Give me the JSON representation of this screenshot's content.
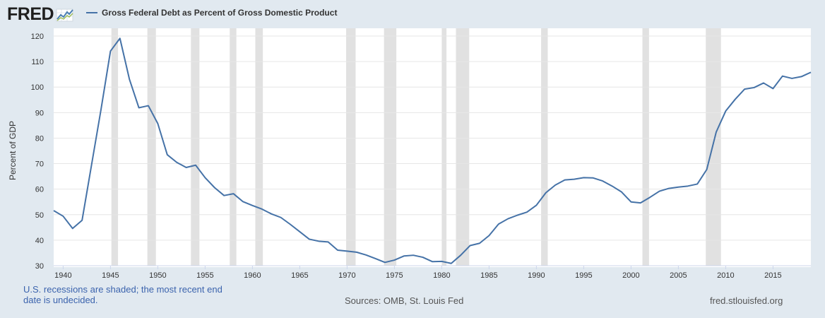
{
  "header": {
    "brand": "FRED",
    "legend_label": "Gross Federal Debt as Percent of Gross Domestic Product"
  },
  "footer": {
    "recession_note": "U.S. recessions are shaded; the most recent end date is undecided.",
    "sources": "Sources: OMB, St. Louis Fed",
    "site": "fred.stlouisfed.org"
  },
  "colors": {
    "line": "#4572a7",
    "recession": "#e1e1e1",
    "page_bg": "#e1e9f0",
    "plot_bg": "#ffffff",
    "grid": "#e6e6e6"
  },
  "icons": [
    "fred-logo-chart-icon"
  ],
  "chart_data": {
    "type": "line",
    "title": "Gross Federal Debt as Percent of Gross Domestic Product",
    "ylabel": "Percent of GDP",
    "xlabel": "",
    "xlim": [
      1939,
      2019
    ],
    "ylim": [
      30,
      120
    ],
    "yticks": [
      30,
      40,
      50,
      60,
      70,
      80,
      90,
      100,
      110,
      120
    ],
    "xticks": [
      1940,
      1945,
      1950,
      1955,
      1960,
      1965,
      1970,
      1975,
      1980,
      1985,
      1990,
      1995,
      2000,
      2005,
      2010,
      2015
    ],
    "grid": true,
    "legend_position": "top-left",
    "recessions": [
      [
        1945.1,
        1945.8
      ],
      [
        1948.9,
        1949.8
      ],
      [
        1953.5,
        1954.4
      ],
      [
        1957.6,
        1958.3
      ],
      [
        1960.3,
        1961.1
      ],
      [
        1969.9,
        1970.9
      ],
      [
        1973.9,
        1975.2
      ],
      [
        1980.0,
        1980.5
      ],
      [
        1981.5,
        1982.9
      ],
      [
        1990.5,
        1991.2
      ],
      [
        2001.2,
        2001.9
      ],
      [
        2007.9,
        2009.5
      ]
    ],
    "series": [
      {
        "x": [
          1939,
          1940,
          1941,
          1942,
          1943,
          1944,
          1945,
          1946,
          1947,
          1948,
          1949,
          1950,
          1951,
          1952,
          1953,
          1954,
          1955,
          1956,
          1957,
          1958,
          1959,
          1960,
          1961,
          1962,
          1963,
          1964,
          1965,
          1966,
          1967,
          1968,
          1969,
          1970,
          1971,
          1972,
          1973,
          1974,
          1975,
          1976,
          1977,
          1978,
          1979,
          1980,
          1981,
          1982,
          1983,
          1984,
          1985,
          1986,
          1987,
          1988,
          1989,
          1990,
          1991,
          1992,
          1993,
          1994,
          1995,
          1996,
          1997,
          1998,
          1999,
          2000,
          2001,
          2002,
          2003,
          2004,
          2005,
          2006,
          2007,
          2008,
          2009,
          2010,
          2011,
          2012,
          2013,
          2014,
          2015,
          2016,
          2017,
          2018,
          2019
        ],
        "values": [
          51.6,
          49.4,
          44.6,
          47.8,
          69.5,
          91.2,
          114.1,
          119.1,
          103.1,
          91.9,
          92.7,
          85.7,
          73.5,
          70.5,
          68.5,
          69.4,
          64.5,
          60.6,
          57.5,
          58.2,
          55.1,
          53.6,
          52.2,
          50.3,
          48.9,
          46.2,
          43.3,
          40.4,
          39.6,
          39.3,
          36.1,
          35.7,
          35.3,
          34.2,
          32.8,
          31.3,
          32.2,
          33.8,
          34.1,
          33.3,
          31.6,
          31.7,
          30.9,
          34.1,
          37.9,
          38.8,
          41.8,
          46.3,
          48.4,
          49.8,
          51.0,
          53.7,
          58.6,
          61.6,
          63.6,
          63.9,
          64.5,
          64.4,
          63.2,
          61.2,
          58.9,
          55.0,
          54.6,
          56.8,
          59.2,
          60.3,
          60.8,
          61.2,
          62.0,
          67.7,
          82.4,
          90.6,
          95.2,
          99.2,
          99.8,
          101.6,
          99.4,
          104.3,
          103.4,
          104.1,
          105.8
        ]
      }
    ]
  }
}
